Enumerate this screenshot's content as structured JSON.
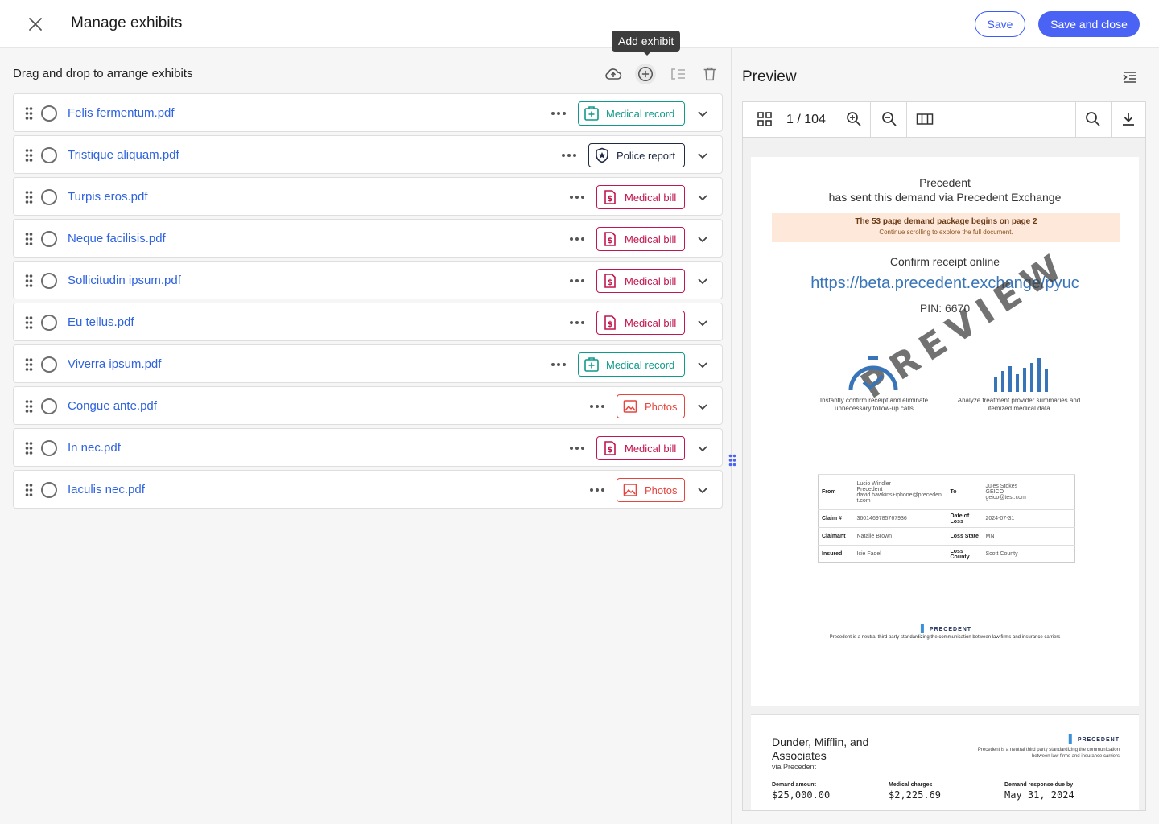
{
  "header": {
    "title": "Manage exhibits",
    "save_label": "Save",
    "save_close_label": "Save and close"
  },
  "tooltip": {
    "label": "Add exhibit"
  },
  "left": {
    "heading": "Drag and drop to arrange exhibits",
    "toolbar_icons": [
      "upload-cloud-icon",
      "add-circle-icon",
      "merge-icon",
      "trash-icon"
    ]
  },
  "exhibits": [
    {
      "name": "Felis fermentum.pdf",
      "tag": "Medical record",
      "type": "record"
    },
    {
      "name": "Tristique aliquam.pdf",
      "tag": "Police report",
      "type": "police"
    },
    {
      "name": "Turpis eros.pdf",
      "tag": "Medical bill",
      "type": "bill"
    },
    {
      "name": "Neque facilisis.pdf",
      "tag": "Medical bill",
      "type": "bill"
    },
    {
      "name": "Sollicitudin ipsum.pdf",
      "tag": "Medical bill",
      "type": "bill"
    },
    {
      "name": "Eu tellus.pdf",
      "tag": "Medical bill",
      "type": "bill"
    },
    {
      "name": "Viverra ipsum.pdf",
      "tag": "Medical record",
      "type": "record"
    },
    {
      "name": "Congue ante.pdf",
      "tag": "Photos",
      "type": "photo"
    },
    {
      "name": "In nec.pdf",
      "tag": "Medical bill",
      "type": "bill"
    },
    {
      "name": "Iaculis nec.pdf",
      "tag": "Photos",
      "type": "photo"
    }
  ],
  "tag_colors": {
    "record": "#0f9a8a",
    "police": "#1f2a44",
    "bill": "#c0174d",
    "photo": "#e5453d"
  },
  "preview": {
    "title": "Preview",
    "page_indicator": "1 / 104",
    "page1": {
      "line1": "Precedent",
      "line2": "has sent this demand via Precedent Exchange",
      "banner_title": "The 53 page demand package begins on page 2",
      "banner_sub": "Continue scrolling to explore the full document.",
      "confirm": "Confirm receipt online",
      "url": "https://beta.precedent.exchange/pyuc",
      "pin": "PIN: 6670",
      "watermark": "PREVIEW",
      "feature1": "Instantly confirm receipt and eliminate unnecessary follow-up calls",
      "feature2": "Analyze treatment provider summaries and itemized medical data",
      "table": {
        "from_label": "From",
        "from_value": "Lucio Windler\nPrecedent\ndavid.hawkins+iphone@precedent.com",
        "to_label": "To",
        "to_value": "Jules Stokes\nGEICO\ngeico@test.com",
        "claim_label": "Claim #",
        "claim_value": "3601469785767936",
        "dol_label": "Date of Loss",
        "dol_value": "2024-07-31",
        "claimant_label": "Claimant",
        "claimant_value": "Natalie Brown",
        "state_label": "Loss State",
        "state_value": "MN",
        "insured_label": "Insured",
        "insured_value": "Icie Fadel",
        "county_label": "Loss County",
        "county_value": "Scott County"
      },
      "logo": "PRECEDENT",
      "footer": "Precedent is a neutral third party standardizing the communication between law firms and insurance carriers"
    },
    "page2": {
      "firm": "Dunder, Mifflin, and Associates",
      "via": "via Precedent",
      "logo": "PRECEDENT",
      "note": "Precedent is a neutral third party standardizing the communication between law firms and insurance carriers",
      "demand_amount_label": "Demand amount",
      "demand_amount": "$25,000.00",
      "medical_label": "Medical charges",
      "medical": "$2,225.69",
      "due_label": "Demand response due by",
      "due": "May 31, 2024"
    }
  }
}
